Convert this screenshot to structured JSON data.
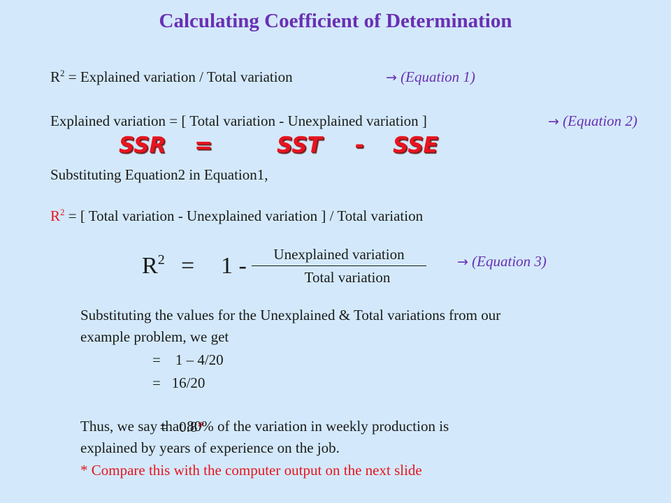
{
  "title": "Calculating Coefficient of Determination",
  "eq1": {
    "lhs_base": "R",
    "lhs_exp": "2",
    "body": " = Explained variation / Total variation",
    "arrow": "→",
    "ref": "(Equation 1)"
  },
  "eq2": {
    "body": "Explained variation = [ Total variation - Unexplained variation ]",
    "arrow": "→",
    "ref": "(Equation 2)"
  },
  "ssr_row": {
    "ssr": "SSR",
    "eq": "=",
    "sst": "SST",
    "minus": "-",
    "sse": "SSE"
  },
  "substituting": "Substituting Equation2 in Equation1,",
  "eq_expanded": {
    "lhs_base": "R",
    "lhs_exp": "2",
    "body": " = [ Total variation - Unexplained variation ] / Total variation"
  },
  "eq3": {
    "lhs_base": "R",
    "lhs_exp": "2",
    "equals": "=",
    "one_minus": "1 -",
    "numerator": "Unexplained variation",
    "denominator": "Total variation",
    "arrow": "→",
    "ref": "(Equation 3)"
  },
  "paragraph": {
    "line1": "Substituting the values for the Unexplained & Total variations from our",
    "line2": "example problem, we get",
    "step1": "=    1 – 4/20",
    "step2": "=   16/20",
    "step3_value": "=   0.8",
    "step3_star": "*",
    "conclusion1": "Thus, we say that 80% of the variation in weekly production is",
    "conclusion2": "explained by years of experience on the job.",
    "note": "* Compare this with the computer output on the next slide"
  },
  "colors": {
    "background": "#d3e9fb",
    "title": "#6a2fb4",
    "accent_red": "#e8141f",
    "text": "#1a1a1a"
  }
}
